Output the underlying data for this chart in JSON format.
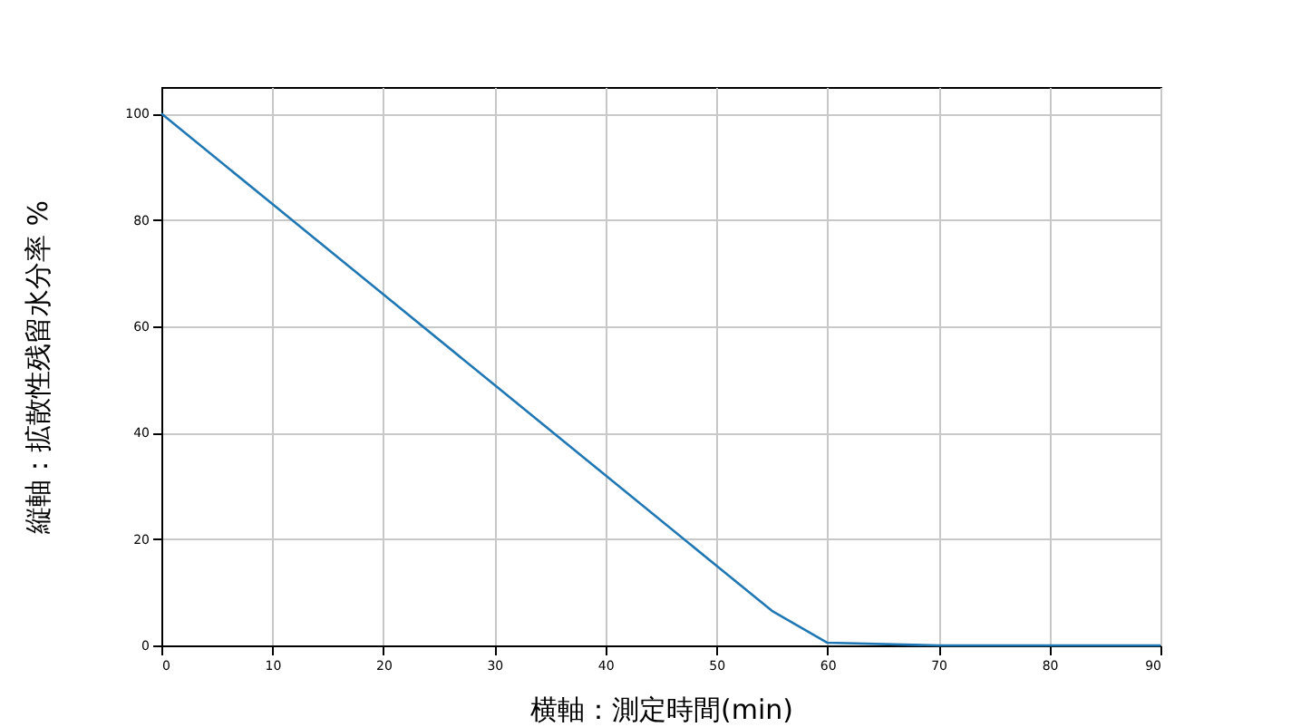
{
  "chart_data": {
    "type": "line",
    "xlabel": "横軸：測定時間(min)",
    "ylabel": "縦軸：拡散性残留水分率 %",
    "x": [
      0,
      10,
      20,
      30,
      40,
      50,
      55,
      60,
      70,
      80,
      90
    ],
    "series": [
      {
        "color": "#1f77b4",
        "values": [
          100,
          83,
          66,
          49,
          32,
          15,
          6.5,
          0.5,
          0,
          0,
          0
        ]
      }
    ],
    "xlim": [
      0,
      90
    ],
    "xticks": [
      0,
      10,
      20,
      30,
      40,
      50,
      60,
      70,
      80,
      90
    ],
    "ylim": [
      0,
      105
    ],
    "yticks": [
      0,
      20,
      40,
      60,
      80,
      100
    ],
    "grid": true,
    "marker": "none",
    "line_style": "solid"
  }
}
